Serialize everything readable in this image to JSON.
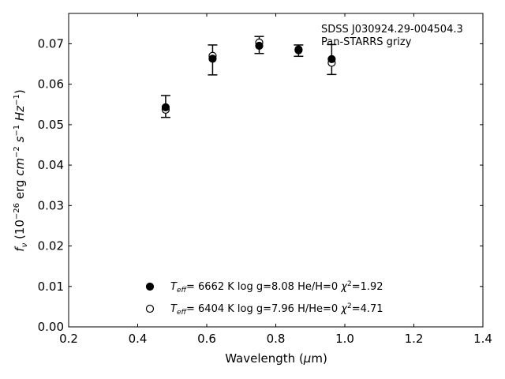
{
  "chart_data": {
    "type": "scatter",
    "title": "",
    "xlabel_prefix": "Wavelength (",
    "xlabel_mu": "μ",
    "xlabel_suffix": "m)",
    "ylabel_parts": [
      "f",
      "ν",
      " (10",
      "−26",
      " erg ",
      "cm",
      "−2",
      " ",
      "s",
      "−1",
      " ",
      "Hz",
      "−1",
      ")"
    ],
    "xlim": [
      0.2,
      1.4
    ],
    "ylim": [
      0.0,
      0.0775
    ],
    "xticks": [
      0.2,
      0.4,
      0.6,
      0.8,
      1.0,
      1.2,
      1.4
    ],
    "xtick_labels": [
      "0.2",
      "0.4",
      "0.6",
      "0.8",
      "1.0",
      "1.2",
      "1.4"
    ],
    "yticks": [
      0.0,
      0.01,
      0.02,
      0.03,
      0.04,
      0.05,
      0.06,
      0.07
    ],
    "ytick_labels": [
      "0.00",
      "0.01",
      "0.02",
      "0.03",
      "0.04",
      "0.05",
      "0.06",
      "0.07"
    ],
    "grid": false,
    "annotation": [
      "SDSS J030924.29-004504.3",
      "Pan-STARRS grizy"
    ],
    "observed": {
      "x": [
        0.481,
        0.617,
        0.752,
        0.866,
        0.962
      ],
      "y": [
        0.0545,
        0.066,
        0.0697,
        0.0683,
        0.0661
      ],
      "yerr": [
        0.0027,
        0.0037,
        0.0021,
        0.0014,
        0.0037
      ],
      "color": "#000000"
    },
    "series": [
      {
        "marker": "filled",
        "x": [
          0.481,
          0.617,
          0.752,
          0.866,
          0.962
        ],
        "y": [
          0.0543,
          0.0663,
          0.0695,
          0.0684,
          0.0662
        ],
        "legend": {
          "teff_sub": "eff",
          "teff_value": "=  6662 K  log g=8.08  He/H=0  ",
          "chi_sup": "2",
          "chi_value": "=1.92"
        }
      },
      {
        "marker": "open",
        "x": [
          0.481,
          0.617,
          0.752,
          0.866,
          0.962
        ],
        "y": [
          0.0537,
          0.067,
          0.0703,
          0.0686,
          0.0653
        ],
        "legend": {
          "teff_sub": "eff",
          "teff_value": "=  6404 K  log g=7.96  H/He=0  ",
          "chi_sup": "2",
          "chi_value": "=4.71"
        }
      }
    ]
  }
}
